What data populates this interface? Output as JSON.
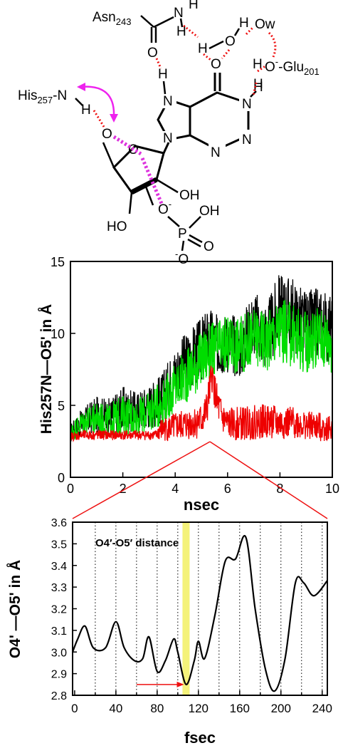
{
  "molecule": {
    "labels": {
      "asn": "Asn",
      "asn_sub": "243",
      "his": "His",
      "his_sub": "257",
      "his_n": "-N",
      "glu_minus": "O",
      "glu_minus_sup": "-",
      "glu": "-Glu",
      "glu_sub": "201",
      "ow": "Ow",
      "n": "N",
      "h": "H",
      "o": "O",
      "oh": "OH",
      "ho": "HO",
      "p": "P",
      "o_minus": "O",
      "minus": "-"
    }
  },
  "chart_data": [
    {
      "type": "line",
      "title": "",
      "xlabel": "nsec",
      "ylabel": "His257N—O5' in Å",
      "xlim": [
        0,
        10
      ],
      "ylim": [
        0,
        15
      ],
      "xticks": [
        "0",
        "2",
        "4",
        "6",
        "8",
        "10"
      ],
      "yticks": [
        "0",
        "5",
        "10",
        "15"
      ],
      "series": [
        {
          "color": "#000000",
          "x": [
            0,
            0.5,
            1.0,
            1.5,
            2.0,
            2.5,
            3.0,
            3.5,
            4.0,
            4.5,
            5.0,
            5.3,
            5.6,
            6.0,
            6.5,
            7.0,
            7.5,
            8.0,
            8.5,
            9.0,
            9.5,
            10.0
          ],
          "y": [
            3.0,
            3.8,
            4.2,
            4.0,
            4.6,
            4.4,
            4.8,
            5.3,
            7.0,
            8.0,
            8.6,
            9.5,
            9.0,
            9.2,
            8.8,
            10.5,
            9.5,
            11.5,
            11.0,
            10.2,
            10.5,
            10.0
          ],
          "amp": [
            0.7,
            1.0,
            1.3,
            1.4,
            1.6,
            1.4,
            1.6,
            1.8,
            2.0,
            2.1,
            2.3,
            2.2,
            2.1,
            2.2,
            2.2,
            2.3,
            2.4,
            2.6,
            2.6,
            2.5,
            2.5,
            2.4
          ]
        },
        {
          "color": "#00dd00",
          "x": [
            0,
            0.5,
            1.0,
            1.5,
            2.0,
            2.5,
            3.0,
            3.5,
            4.0,
            4.5,
            5.0,
            5.3,
            5.6,
            6.0,
            6.5,
            7.0,
            7.5,
            8.0,
            8.5,
            9.0,
            9.5,
            10.0
          ],
          "y": [
            3.0,
            3.8,
            4.0,
            3.8,
            4.2,
            4.0,
            4.4,
            5.0,
            6.0,
            7.0,
            8.0,
            8.5,
            8.8,
            9.0,
            9.0,
            9.5,
            9.3,
            10.0,
            9.6,
            9.2,
            9.6,
            9.2
          ],
          "amp": [
            0.7,
            0.9,
            1.1,
            1.2,
            1.4,
            1.3,
            1.4,
            1.6,
            1.8,
            1.9,
            2.0,
            2.0,
            1.9,
            2.0,
            2.0,
            2.1,
            2.2,
            2.3,
            2.3,
            2.2,
            2.2,
            2.2
          ]
        },
        {
          "color": "#ee0000",
          "x": [
            0,
            0.5,
            1.0,
            1.5,
            2.0,
            2.5,
            3.0,
            3.3,
            3.4,
            4.0,
            4.5,
            5.0,
            5.2,
            5.4,
            5.6,
            5.8,
            6.0,
            6.5,
            7.0,
            7.5,
            8.0,
            8.5,
            9.0,
            9.5,
            10.0
          ],
          "y": [
            2.8,
            2.9,
            2.9,
            2.9,
            2.9,
            2.9,
            2.9,
            2.9,
            3.2,
            3.4,
            3.6,
            3.8,
            4.5,
            7.0,
            5.0,
            4.0,
            3.6,
            3.6,
            3.7,
            3.8,
            3.6,
            3.7,
            3.5,
            3.4,
            3.3
          ],
          "amp": [
            0.3,
            0.35,
            0.35,
            0.35,
            0.35,
            0.35,
            0.35,
            0.35,
            0.8,
            1.0,
            1.1,
            1.2,
            1.3,
            1.2,
            1.3,
            1.2,
            1.1,
            1.2,
            1.2,
            1.2,
            1.2,
            1.1,
            1.0,
            1.0,
            0.9
          ]
        }
      ]
    },
    {
      "type": "line",
      "title": "",
      "annotation": "O4′-O5′ distance",
      "xlabel": "fsec",
      "ylabel": "O4' —O5' in Å",
      "xlim": [
        -2,
        245
      ],
      "ylim": [
        2.8,
        3.6
      ],
      "xticks": [
        "0",
        "40",
        "80",
        "120",
        "160",
        "200",
        "240"
      ],
      "yticks": [
        "2.8",
        "2.9",
        "3.0",
        "3.1",
        "3.2",
        "3.3",
        "3.4",
        "3.5",
        "3.6"
      ],
      "grid": "vertical dotted lines every 20 fsec",
      "highlight_x": 108,
      "arrow_x": [
        60,
        106
      ],
      "arrow_y": 2.85,
      "series": [
        {
          "color": "#000000",
          "x": [
            -2,
            3,
            10,
            18,
            30,
            40,
            48,
            58,
            66,
            72,
            80,
            88,
            96,
            100,
            108,
            116,
            120,
            126,
            136,
            146,
            156,
            166,
            175,
            185,
            194,
            204,
            214,
            222,
            232,
            245
          ],
          "y": [
            3.0,
            3.06,
            3.12,
            3.02,
            3.02,
            3.14,
            3.02,
            2.96,
            2.97,
            3.07,
            2.91,
            2.96,
            3.06,
            3.0,
            2.85,
            2.96,
            3.05,
            2.97,
            3.17,
            3.42,
            3.43,
            3.53,
            3.2,
            2.92,
            2.82,
            2.97,
            3.32,
            3.32,
            3.26,
            3.33
          ]
        }
      ]
    }
  ]
}
